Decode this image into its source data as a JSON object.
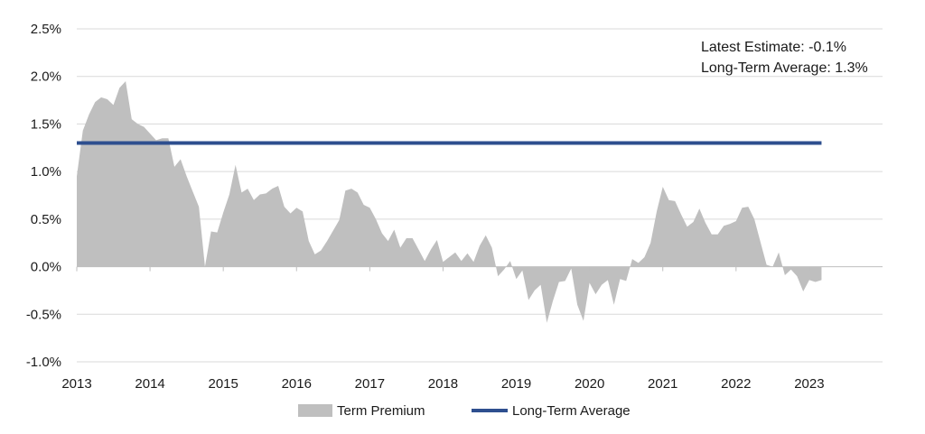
{
  "chart_data": {
    "type": "area",
    "title": "",
    "xlabel": "",
    "ylabel": "",
    "ylim": [
      -1.0,
      2.5
    ],
    "xlim": [
      2013,
      2024
    ],
    "grid": "horizontal",
    "legend_position": "bottom",
    "x_ticks": [
      "2013",
      "2014",
      "2015",
      "2016",
      "2017",
      "2018",
      "2019",
      "2020",
      "2021",
      "2022",
      "2023"
    ],
    "y_ticks": [
      "-1.0%",
      "-0.5%",
      "0.0%",
      "0.5%",
      "1.0%",
      "1.5%",
      "2.0%",
      "2.5%"
    ],
    "annotations": [
      "Latest Estimate: -0.1%",
      "Long-Term Average: 1.3%"
    ],
    "series": [
      {
        "name": "Term Premium",
        "type": "area",
        "color": "#bfbfbf",
        "x": [
          2013.0,
          2013.083,
          2013.167,
          2013.25,
          2013.333,
          2013.417,
          2013.5,
          2013.583,
          2013.667,
          2013.75,
          2013.833,
          2013.917,
          2014.0,
          2014.083,
          2014.167,
          2014.25,
          2014.333,
          2014.417,
          2014.5,
          2014.583,
          2014.667,
          2014.75,
          2014.833,
          2014.917,
          2015.0,
          2015.083,
          2015.167,
          2015.25,
          2015.333,
          2015.417,
          2015.5,
          2015.583,
          2015.667,
          2015.75,
          2015.833,
          2015.917,
          2016.0,
          2016.083,
          2016.167,
          2016.25,
          2016.333,
          2016.417,
          2016.5,
          2016.583,
          2016.667,
          2016.75,
          2016.833,
          2016.917,
          2017.0,
          2017.083,
          2017.167,
          2017.25,
          2017.333,
          2017.417,
          2017.5,
          2017.583,
          2017.667,
          2017.75,
          2017.833,
          2017.917,
          2018.0,
          2018.083,
          2018.167,
          2018.25,
          2018.333,
          2018.417,
          2018.5,
          2018.583,
          2018.667,
          2018.75,
          2018.833,
          2018.917,
          2019.0,
          2019.083,
          2019.167,
          2019.25,
          2019.333,
          2019.417,
          2019.5,
          2019.583,
          2019.667,
          2019.75,
          2019.833,
          2019.917,
          2020.0,
          2020.083,
          2020.167,
          2020.25,
          2020.333,
          2020.417,
          2020.5,
          2020.583,
          2020.667,
          2020.75,
          2020.833,
          2020.917,
          2021.0,
          2021.083,
          2021.167,
          2021.25,
          2021.333,
          2021.417,
          2021.5,
          2021.583,
          2021.667,
          2021.75,
          2021.833,
          2021.917,
          2022.0,
          2022.083,
          2022.167,
          2022.25,
          2022.333,
          2022.417,
          2022.5,
          2022.583,
          2022.667,
          2022.75,
          2022.833,
          2022.917,
          2023.0,
          2023.083,
          2023.167
        ],
        "values": [
          0.95,
          1.43,
          1.6,
          1.73,
          1.78,
          1.76,
          1.7,
          1.88,
          1.95,
          1.55,
          1.5,
          1.47,
          1.4,
          1.33,
          1.35,
          1.35,
          1.05,
          1.13,
          0.95,
          0.79,
          0.63,
          0.0,
          0.37,
          0.36,
          0.57,
          0.76,
          1.07,
          0.78,
          0.82,
          0.7,
          0.76,
          0.77,
          0.82,
          0.85,
          0.63,
          0.56,
          0.62,
          0.58,
          0.27,
          0.13,
          0.17,
          0.27,
          0.38,
          0.49,
          0.8,
          0.82,
          0.78,
          0.65,
          0.62,
          0.5,
          0.35,
          0.27,
          0.39,
          0.2,
          0.3,
          0.3,
          0.18,
          0.06,
          0.18,
          0.28,
          0.05,
          0.1,
          0.15,
          0.06,
          0.14,
          0.05,
          0.22,
          0.33,
          0.2,
          -0.1,
          -0.03,
          0.06,
          -0.13,
          -0.04,
          -0.35,
          -0.25,
          -0.19,
          -0.59,
          -0.36,
          -0.16,
          -0.15,
          -0.02,
          -0.4,
          -0.57,
          -0.17,
          -0.29,
          -0.19,
          -0.14,
          -0.4,
          -0.13,
          -0.15,
          0.08,
          0.04,
          0.1,
          0.25,
          0.58,
          0.84,
          0.7,
          0.69,
          0.55,
          0.42,
          0.47,
          0.61,
          0.46,
          0.34,
          0.34,
          0.43,
          0.45,
          0.48,
          0.62,
          0.63,
          0.5,
          0.26,
          0.02,
          0.0,
          0.15,
          -0.09,
          -0.03,
          -0.1,
          -0.26,
          -0.14,
          -0.16,
          -0.14
        ]
      },
      {
        "name": "Long-Term Average",
        "type": "line",
        "color": "#2e4f8f",
        "x": [
          2013.0,
          2023.167
        ],
        "values": [
          1.3,
          1.3
        ]
      }
    ]
  }
}
